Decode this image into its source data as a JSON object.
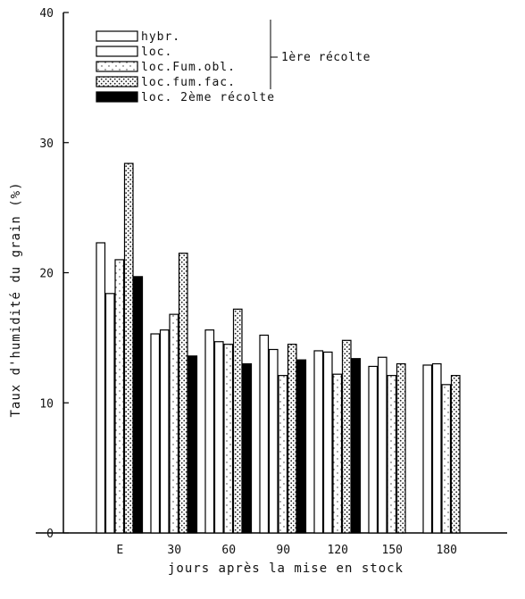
{
  "chart_data": {
    "type": "bar",
    "title": "",
    "xlabel": "jours après la mise en stock",
    "ylabel": "Taux d'humidité du grain (%)",
    "ylim": [
      0,
      40
    ],
    "yticks": [
      0,
      10,
      20,
      30,
      40
    ],
    "categories": [
      "E",
      "30",
      "60",
      "90",
      "120",
      "150",
      "180"
    ],
    "grid": false,
    "legend_position": "top-left",
    "legend_group_label": "1ère récolte",
    "series": [
      {
        "name": "hybr.",
        "pattern": "plain",
        "values": [
          22.3,
          15.3,
          15.6,
          15.2,
          14.0,
          12.8,
          12.9
        ]
      },
      {
        "name": "loc.",
        "pattern": "plain",
        "values": [
          18.4,
          15.6,
          14.7,
          14.1,
          13.9,
          13.5,
          13.0
        ]
      },
      {
        "name": "loc.Fum.obl.",
        "pattern": "light-dots",
        "values": [
          21.0,
          16.8,
          14.5,
          12.1,
          12.2,
          12.1,
          11.4
        ]
      },
      {
        "name": "loc.fum.fac.",
        "pattern": "dense-dots",
        "values": [
          28.4,
          21.5,
          17.2,
          14.5,
          14.8,
          13.0,
          12.1
        ]
      },
      {
        "name": "loc. 2ème récolte",
        "pattern": "solid",
        "values": [
          19.7,
          13.6,
          13.0,
          13.3,
          13.4,
          null,
          null
        ]
      }
    ]
  }
}
